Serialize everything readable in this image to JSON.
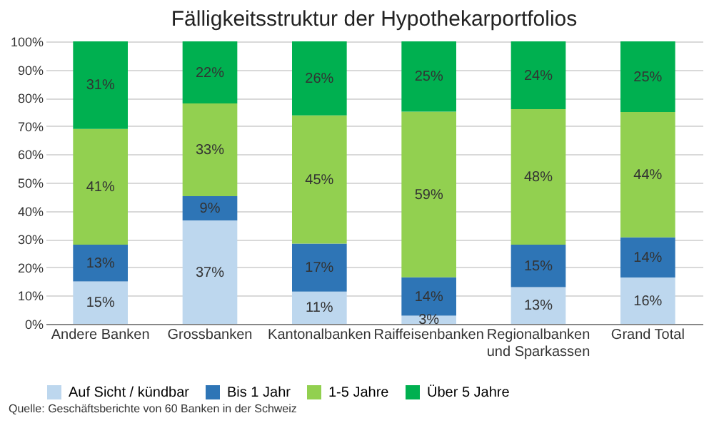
{
  "chart_data": {
    "type": "bar",
    "stacked": true,
    "title": "Fälligkeitsstruktur der Hypothekarportfolios",
    "categories": [
      "Andere Banken",
      "Grossbanken",
      "Kantonalbanken",
      "Raiffeisenbanken",
      "Regionalbanken und Sparkassen",
      "Grand Total"
    ],
    "series": [
      {
        "name": "Auf Sicht / kündbar",
        "color": "#bdd7ee",
        "values": [
          15,
          36.6,
          11.4,
          2.9,
          13,
          16.4
        ],
        "value_labels": [
          "15%",
          "37%",
          "11%",
          "3%",
          "13%",
          "16%"
        ]
      },
      {
        "name": "Bis 1 Jahr",
        "color": "#2e75b6",
        "values": [
          13,
          8.6,
          17.0,
          13.6,
          15,
          14.2
        ],
        "value_labels": [
          "13%",
          "9%",
          "17%",
          "14%",
          "15%",
          "14%"
        ]
      },
      {
        "name": "1-5 Jahre",
        "color": "#92d050",
        "values": [
          41,
          32.8,
          45.4,
          58.6,
          48,
          44.4
        ],
        "value_labels": [
          "41%",
          "33%",
          "45%",
          "59%",
          "48%",
          "44%"
        ]
      },
      {
        "name": "Über 5 Jahre",
        "color": "#00b050",
        "values": [
          31,
          22.0,
          26.2,
          24.9,
          24,
          25.0
        ],
        "value_labels": [
          "31%",
          "22%",
          "26%",
          "25%",
          "24%",
          "25%"
        ]
      }
    ],
    "ylim": [
      0,
      100
    ],
    "yticks": [
      {
        "value": 0,
        "label": "0%"
      },
      {
        "value": 10,
        "label": "10%"
      },
      {
        "value": 20,
        "label": "20%"
      },
      {
        "value": 30,
        "label": "30%"
      },
      {
        "value": 40,
        "label": "40%"
      },
      {
        "value": 50,
        "label": "50%"
      },
      {
        "value": 60,
        "label": "60%"
      },
      {
        "value": 70,
        "label": "70%"
      },
      {
        "value": 80,
        "label": "80%"
      },
      {
        "value": 90,
        "label": "90%"
      },
      {
        "value": 100,
        "label": "100%"
      }
    ],
    "grid": "y",
    "legend": "bottom",
    "annotations": [
      "Quelle: Geschäftsberichte von 60 Banken in der Schweiz"
    ]
  }
}
